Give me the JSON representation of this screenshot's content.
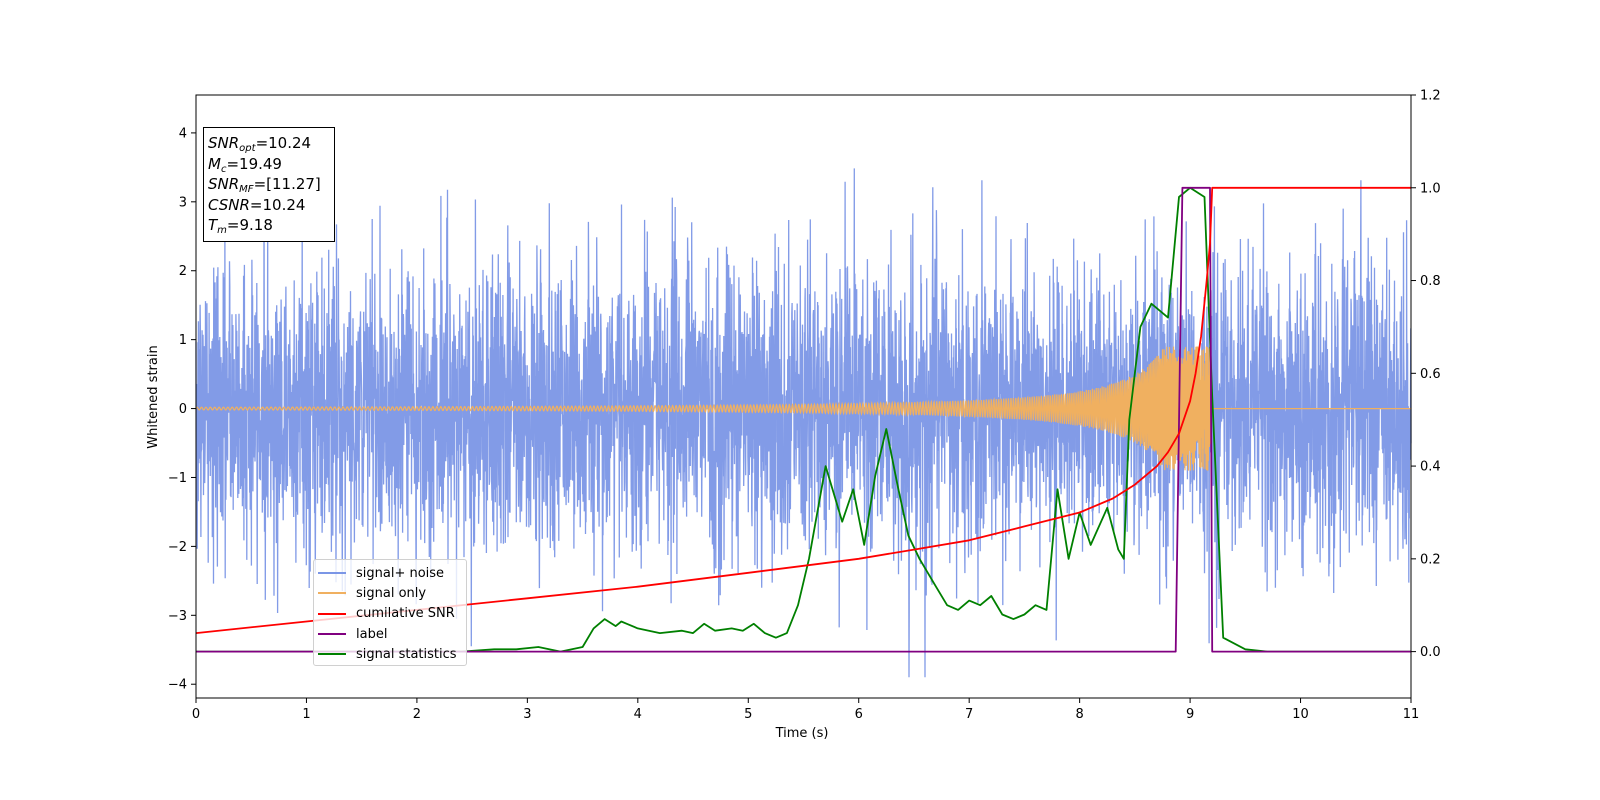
{
  "chart_data": {
    "type": "line",
    "title": "",
    "xlabel": "Time (s)",
    "ylabel": "Whitened strain",
    "y2label": "",
    "xlim": [
      0,
      11
    ],
    "ylim": [
      -4.2,
      4.55
    ],
    "y2lim": [
      -0.1,
      1.2
    ],
    "xticks": [
      "0",
      "1",
      "2",
      "3",
      "4",
      "5",
      "6",
      "7",
      "8",
      "9",
      "10",
      "11"
    ],
    "yticks": [
      "−4",
      "−3",
      "−2",
      "−1",
      "0",
      "1",
      "2",
      "3",
      "4"
    ],
    "y2ticks": [
      "0.0",
      "0.2",
      "0.4",
      "0.6",
      "0.8",
      "1.0",
      "1.2"
    ],
    "grid": false,
    "legend_location": "lower-left",
    "info_box": {
      "snr_opt": {
        "sym": "SNR",
        "sub": "opt",
        "value": "=10.24"
      },
      "mc": {
        "sym": "M",
        "sub": "c",
        "value": "=19.49"
      },
      "snr_mf": {
        "sym": "SNR",
        "sub": "MF",
        "value": "=[11.27]"
      },
      "csnr": {
        "sym": "CSNR",
        "value": "=10.24"
      },
      "tm": {
        "sym": "T",
        "sub": "m",
        "value": "=9.18"
      }
    },
    "series": [
      {
        "name": "signal+ noise",
        "color": "#7b96e6",
        "axis": "left",
        "description": "whitened noise, roughly ±1.3 with spikes to ±4"
      },
      {
        "name": "signal only",
        "color": "#f0b060",
        "axis": "left",
        "chirp_start_amplitude": 0.02,
        "chirp_peak_amplitude": 0.9,
        "merger_time": 9.18
      },
      {
        "name": "cumilative SNR",
        "color": "#ff0000",
        "axis": "right",
        "x": [
          0,
          1,
          2,
          3,
          4,
          5,
          5.5,
          6,
          6.5,
          7,
          7.5,
          8,
          8.3,
          8.5,
          8.7,
          8.8,
          8.9,
          9.0,
          9.05,
          9.1,
          9.15,
          9.18,
          9.2,
          11
        ],
        "y": [
          0.04,
          0.065,
          0.09,
          0.115,
          0.14,
          0.17,
          0.185,
          0.2,
          0.22,
          0.24,
          0.27,
          0.3,
          0.33,
          0.36,
          0.4,
          0.43,
          0.47,
          0.54,
          0.6,
          0.68,
          0.8,
          0.88,
          1.0,
          1.0
        ]
      },
      {
        "name": "label",
        "color": "#800080",
        "axis": "right",
        "x": [
          0,
          8.87,
          8.93,
          9.18,
          9.2,
          11
        ],
        "y": [
          0,
          0,
          1,
          1,
          0,
          0
        ]
      },
      {
        "name": "signal statistics",
        "color": "#008000",
        "axis": "right",
        "x": [
          0,
          2.4,
          2.7,
          2.9,
          3.1,
          3.3,
          3.5,
          3.6,
          3.7,
          3.8,
          3.85,
          3.9,
          4.0,
          4.2,
          4.4,
          4.5,
          4.6,
          4.7,
          4.85,
          4.95,
          5.05,
          5.15,
          5.25,
          5.35,
          5.45,
          5.55,
          5.7,
          5.85,
          5.95,
          6.05,
          6.15,
          6.25,
          6.35,
          6.45,
          6.55,
          6.7,
          6.8,
          6.9,
          7.0,
          7.1,
          7.2,
          7.3,
          7.4,
          7.5,
          7.6,
          7.7,
          7.8,
          7.9,
          8.0,
          8.1,
          8.25,
          8.35,
          8.4,
          8.45,
          8.55,
          8.65,
          8.8,
          8.9,
          9.0,
          9.13,
          9.2,
          9.3,
          9.5,
          9.7,
          11
        ],
        "y": [
          0.0,
          0.0,
          0.005,
          0.005,
          0.01,
          0.0,
          0.01,
          0.05,
          0.07,
          0.055,
          0.065,
          0.06,
          0.05,
          0.04,
          0.045,
          0.04,
          0.06,
          0.045,
          0.05,
          0.045,
          0.06,
          0.04,
          0.03,
          0.04,
          0.1,
          0.2,
          0.4,
          0.28,
          0.35,
          0.23,
          0.38,
          0.48,
          0.36,
          0.25,
          0.2,
          0.14,
          0.1,
          0.09,
          0.11,
          0.1,
          0.12,
          0.08,
          0.07,
          0.08,
          0.1,
          0.09,
          0.35,
          0.2,
          0.3,
          0.23,
          0.31,
          0.22,
          0.2,
          0.5,
          0.7,
          0.75,
          0.72,
          0.98,
          1.0,
          0.98,
          0.55,
          0.03,
          0.005,
          0.0,
          0.0
        ]
      }
    ]
  }
}
